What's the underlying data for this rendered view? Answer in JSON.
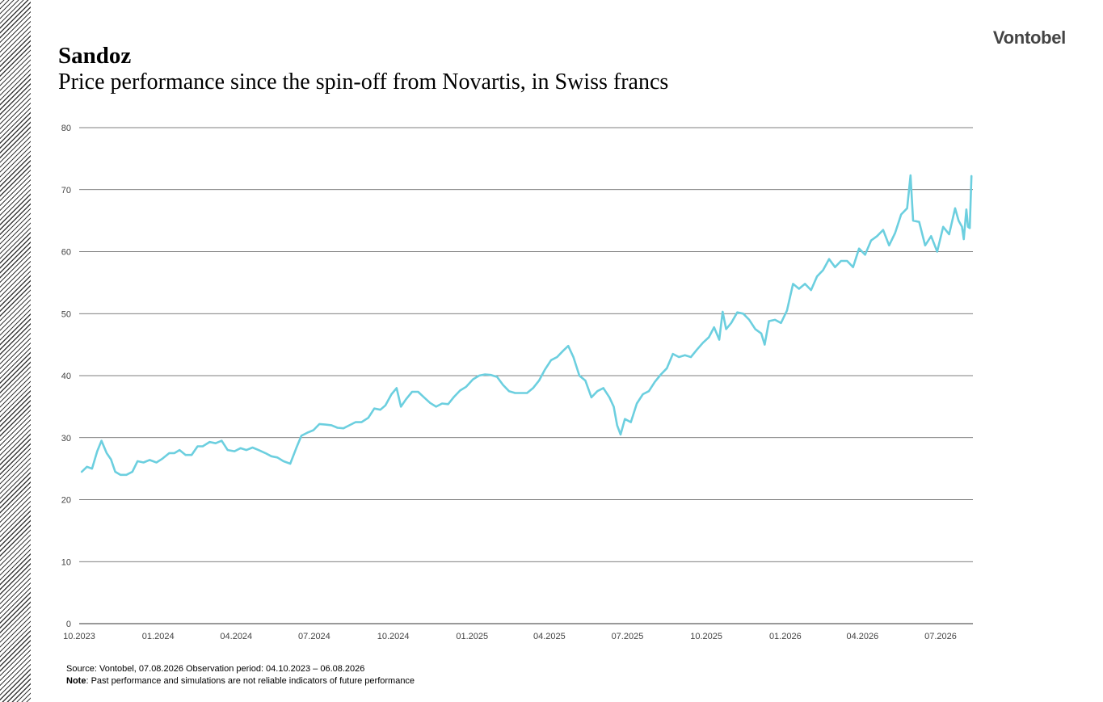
{
  "brand": "Vontobel",
  "colors": {
    "line": "#6ccfdf",
    "grid": "#555555",
    "text": "#444444"
  },
  "chart_data": {
    "type": "line",
    "title": "Sandoz",
    "subtitle": "Price performance since the spin-off from Novartis, in Swiss francs",
    "xlabel": "",
    "ylabel": "",
    "ylim": [
      0,
      80
    ],
    "xlim": [
      "2023-10-04",
      "2026-08-06"
    ],
    "y_ticks": [
      0,
      10,
      20,
      30,
      40,
      50,
      60,
      70,
      80
    ],
    "x_ticks": [
      {
        "date": "2023-10-01",
        "label": "10.2023"
      },
      {
        "date": "2024-01-01",
        "label": "01.2024"
      },
      {
        "date": "2024-04-01",
        "label": "04.2024"
      },
      {
        "date": "2024-07-01",
        "label": "07.2024"
      },
      {
        "date": "2024-10-01",
        "label": "10.2024"
      },
      {
        "date": "2025-01-01",
        "label": "01.2025"
      },
      {
        "date": "2025-04-01",
        "label": "04.2025"
      },
      {
        "date": "2025-07-01",
        "label": "07.2025"
      },
      {
        "date": "2025-10-01",
        "label": "10.2025"
      },
      {
        "date": "2026-01-01",
        "label": "01.2026"
      },
      {
        "date": "2026-04-01",
        "label": "04.2026"
      },
      {
        "date": "2026-07-01",
        "label": "07.2026"
      }
    ],
    "grid": true,
    "legend": "none",
    "series": [
      {
        "name": "",
        "points": [
          [
            "2023-10-04",
            24.5
          ],
          [
            "2023-10-10",
            25.3
          ],
          [
            "2023-10-16",
            25.0
          ],
          [
            "2023-10-22",
            27.8
          ],
          [
            "2023-10-27",
            29.5
          ],
          [
            "2023-11-02",
            27.5
          ],
          [
            "2023-11-07",
            26.5
          ],
          [
            "2023-11-12",
            24.5
          ],
          [
            "2023-11-18",
            24.0
          ],
          [
            "2023-11-25",
            24.0
          ],
          [
            "2023-12-02",
            24.5
          ],
          [
            "2023-12-08",
            26.2
          ],
          [
            "2023-12-15",
            26.0
          ],
          [
            "2023-12-22",
            26.4
          ],
          [
            "2023-12-30",
            26.0
          ],
          [
            "2024-01-06",
            26.6
          ],
          [
            "2024-01-14",
            27.5
          ],
          [
            "2024-01-20",
            27.5
          ],
          [
            "2024-01-26",
            28.0
          ],
          [
            "2024-02-02",
            27.2
          ],
          [
            "2024-02-09",
            27.2
          ],
          [
            "2024-02-16",
            28.6
          ],
          [
            "2024-02-22",
            28.6
          ],
          [
            "2024-03-01",
            29.3
          ],
          [
            "2024-03-08",
            29.1
          ],
          [
            "2024-03-15",
            29.5
          ],
          [
            "2024-03-22",
            28.0
          ],
          [
            "2024-03-30",
            27.8
          ],
          [
            "2024-04-06",
            28.3
          ],
          [
            "2024-04-13",
            28.0
          ],
          [
            "2024-04-20",
            28.4
          ],
          [
            "2024-04-27",
            28.0
          ],
          [
            "2024-05-05",
            27.5
          ],
          [
            "2024-05-12",
            27.0
          ],
          [
            "2024-05-19",
            26.8
          ],
          [
            "2024-05-26",
            26.2
          ],
          [
            "2024-06-03",
            25.8
          ],
          [
            "2024-06-10",
            28.3
          ],
          [
            "2024-06-16",
            30.3
          ],
          [
            "2024-06-23",
            30.8
          ],
          [
            "2024-06-30",
            31.2
          ],
          [
            "2024-07-07",
            32.2
          ],
          [
            "2024-07-14",
            32.1
          ],
          [
            "2024-07-21",
            32.0
          ],
          [
            "2024-07-28",
            31.6
          ],
          [
            "2024-08-04",
            31.5
          ],
          [
            "2024-08-11",
            32.0
          ],
          [
            "2024-08-18",
            32.5
          ],
          [
            "2024-08-25",
            32.5
          ],
          [
            "2024-09-02",
            33.2
          ],
          [
            "2024-09-09",
            34.7
          ],
          [
            "2024-09-16",
            34.5
          ],
          [
            "2024-09-22",
            35.2
          ],
          [
            "2024-09-29",
            37.0
          ],
          [
            "2024-10-05",
            38.0
          ],
          [
            "2024-10-10",
            35.0
          ],
          [
            "2024-10-16",
            36.2
          ],
          [
            "2024-10-23",
            37.4
          ],
          [
            "2024-10-30",
            37.4
          ],
          [
            "2024-11-06",
            36.5
          ],
          [
            "2024-11-13",
            35.6
          ],
          [
            "2024-11-20",
            35.0
          ],
          [
            "2024-11-27",
            35.5
          ],
          [
            "2024-12-04",
            35.4
          ],
          [
            "2024-12-11",
            36.6
          ],
          [
            "2024-12-18",
            37.6
          ],
          [
            "2024-12-25",
            38.2
          ],
          [
            "2025-01-02",
            39.4
          ],
          [
            "2025-01-09",
            40.0
          ],
          [
            "2025-01-16",
            40.2
          ],
          [
            "2025-01-23",
            40.1
          ],
          [
            "2025-01-30",
            39.8
          ],
          [
            "2025-02-06",
            38.5
          ],
          [
            "2025-02-13",
            37.5
          ],
          [
            "2025-02-20",
            37.2
          ],
          [
            "2025-02-27",
            37.2
          ],
          [
            "2025-03-06",
            37.2
          ],
          [
            "2025-03-13",
            38.0
          ],
          [
            "2025-03-20",
            39.2
          ],
          [
            "2025-03-27",
            41.0
          ],
          [
            "2025-04-03",
            42.5
          ],
          [
            "2025-04-10",
            43.0
          ],
          [
            "2025-04-17",
            44.0
          ],
          [
            "2025-04-23",
            44.8
          ],
          [
            "2025-04-29",
            43.0
          ],
          [
            "2025-05-06",
            40.0
          ],
          [
            "2025-05-13",
            39.2
          ],
          [
            "2025-05-20",
            36.5
          ],
          [
            "2025-05-27",
            37.5
          ],
          [
            "2025-06-03",
            38.0
          ],
          [
            "2025-06-10",
            36.5
          ],
          [
            "2025-06-15",
            35.0
          ],
          [
            "2025-06-19",
            32.0
          ],
          [
            "2025-06-23",
            30.5
          ],
          [
            "2025-06-28",
            33.0
          ],
          [
            "2025-07-05",
            32.5
          ],
          [
            "2025-07-12",
            35.5
          ],
          [
            "2025-07-19",
            37.0
          ],
          [
            "2025-07-26",
            37.5
          ],
          [
            "2025-08-02",
            39.0
          ],
          [
            "2025-08-09",
            40.2
          ],
          [
            "2025-08-16",
            41.2
          ],
          [
            "2025-08-23",
            43.5
          ],
          [
            "2025-08-30",
            43.0
          ],
          [
            "2025-09-06",
            43.3
          ],
          [
            "2025-09-13",
            43.0
          ],
          [
            "2025-09-20",
            44.2
          ],
          [
            "2025-09-27",
            45.3
          ],
          [
            "2025-10-04",
            46.2
          ],
          [
            "2025-10-10",
            47.8
          ],
          [
            "2025-10-16",
            45.8
          ],
          [
            "2025-10-20",
            50.3
          ],
          [
            "2025-10-24",
            47.5
          ],
          [
            "2025-10-30",
            48.5
          ],
          [
            "2025-11-06",
            50.2
          ],
          [
            "2025-11-13",
            50.0
          ],
          [
            "2025-11-20",
            49.0
          ],
          [
            "2025-11-27",
            47.5
          ],
          [
            "2025-12-04",
            46.8
          ],
          [
            "2025-12-08",
            45.0
          ],
          [
            "2025-12-13",
            48.8
          ],
          [
            "2025-12-20",
            49.0
          ],
          [
            "2025-12-27",
            48.5
          ],
          [
            "2026-01-03",
            50.5
          ],
          [
            "2026-01-10",
            54.8
          ],
          [
            "2026-01-17",
            54.0
          ],
          [
            "2026-01-24",
            54.8
          ],
          [
            "2026-01-31",
            53.8
          ],
          [
            "2026-02-07",
            56.0
          ],
          [
            "2026-02-14",
            57.0
          ],
          [
            "2026-02-21",
            58.8
          ],
          [
            "2026-02-28",
            57.5
          ],
          [
            "2026-03-07",
            58.5
          ],
          [
            "2026-03-14",
            58.5
          ],
          [
            "2026-03-21",
            57.5
          ],
          [
            "2026-03-28",
            60.5
          ],
          [
            "2026-04-04",
            59.5
          ],
          [
            "2026-04-11",
            61.8
          ],
          [
            "2026-04-18",
            62.5
          ],
          [
            "2026-04-25",
            63.5
          ],
          [
            "2026-05-02",
            61.0
          ],
          [
            "2026-05-09",
            63.0
          ],
          [
            "2026-05-16",
            66.0
          ],
          [
            "2026-05-23",
            67.0
          ],
          [
            "2026-05-27",
            72.3
          ],
          [
            "2026-05-30",
            65.0
          ],
          [
            "2026-06-06",
            64.8
          ],
          [
            "2026-06-13",
            61.0
          ],
          [
            "2026-06-20",
            62.5
          ],
          [
            "2026-06-27",
            60.0
          ],
          [
            "2026-07-04",
            64.0
          ],
          [
            "2026-07-11",
            62.8
          ],
          [
            "2026-07-18",
            67.0
          ],
          [
            "2026-07-22",
            65.0
          ],
          [
            "2026-07-26",
            64.0
          ],
          [
            "2026-07-28",
            62.0
          ],
          [
            "2026-07-31",
            66.8
          ],
          [
            "2026-08-02",
            64.0
          ],
          [
            "2026-08-04",
            63.8
          ],
          [
            "2026-08-06",
            72.2
          ]
        ]
      }
    ]
  },
  "footer": {
    "source": "Source: Vontobel, 07.08.2026 Observation period: 04.10.2023 – 06.08.2026",
    "note_label": "Note",
    "note_text": ": Past performance and simulations are not reliable indicators of future performance"
  }
}
